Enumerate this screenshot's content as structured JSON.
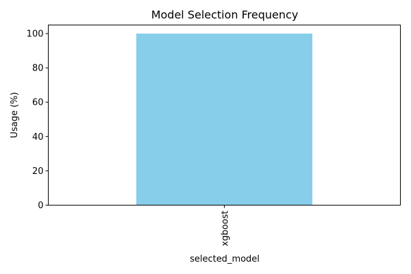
{
  "chart_data": {
    "type": "bar",
    "title": "Model Selection Frequency",
    "xlabel": "selected_model",
    "ylabel": "Usage (%)",
    "categories": [
      "xgboost"
    ],
    "values": [
      100
    ],
    "ylim": [
      0,
      105
    ],
    "yticks": [
      0,
      20,
      40,
      60,
      80,
      100
    ],
    "bar_color": "#87ceeb",
    "xtick_rotation": "vertical",
    "grid": false,
    "legend": "none"
  }
}
